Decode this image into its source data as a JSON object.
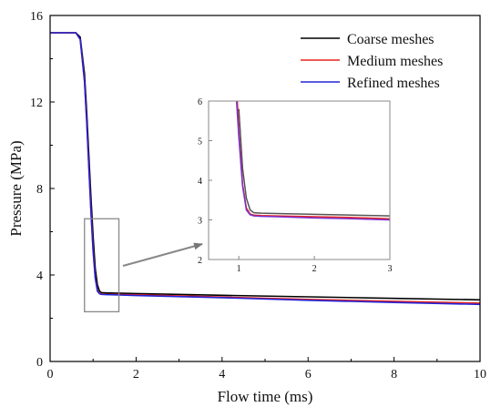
{
  "chart_data": {
    "type": "line",
    "xlabel": "Flow time (ms)",
    "ylabel": "Pressure (MPa)",
    "xlim": [
      0,
      10
    ],
    "ylim": [
      0,
      16
    ],
    "x_ticks": [
      "0",
      "2",
      "4",
      "6",
      "8",
      "10"
    ],
    "y_ticks": [
      "0",
      "4",
      "8",
      "12",
      "16"
    ],
    "legend_position": "top-right",
    "series": [
      {
        "name": "Coarse meshes",
        "color": "#000000",
        "x": [
          0,
          0.6,
          0.7,
          0.8,
          0.85,
          0.9,
          0.95,
          1.0,
          1.05,
          1.1,
          1.15,
          1.2,
          1.3,
          1.5,
          2,
          4,
          6,
          8,
          10
        ],
        "y": [
          15.2,
          15.2,
          15.0,
          13.3,
          11.6,
          9.6,
          7.6,
          5.8,
          4.3,
          3.55,
          3.25,
          3.18,
          3.17,
          3.16,
          3.14,
          3.06,
          2.99,
          2.92,
          2.85
        ]
      },
      {
        "name": "Medium meshes",
        "color": "#e8231c",
        "x": [
          0,
          0.6,
          0.7,
          0.8,
          0.85,
          0.9,
          0.95,
          1.0,
          1.05,
          1.1,
          1.15,
          1.2,
          1.3,
          1.5,
          2,
          4,
          6,
          8,
          10
        ],
        "y": [
          15.2,
          15.2,
          14.9,
          13.0,
          11.2,
          9.1,
          7.0,
          5.2,
          3.9,
          3.3,
          3.15,
          3.12,
          3.11,
          3.1,
          3.08,
          2.98,
          2.87,
          2.78,
          2.7
        ]
      },
      {
        "name": "Refined meshes",
        "color": "#2323d6",
        "x": [
          0,
          0.6,
          0.7,
          0.8,
          0.85,
          0.9,
          0.95,
          1.0,
          1.05,
          1.1,
          1.15,
          1.2,
          1.3,
          1.5,
          2,
          4,
          6,
          8,
          10
        ],
        "y": [
          15.2,
          15.2,
          14.9,
          12.95,
          11.1,
          9.0,
          6.9,
          5.1,
          3.85,
          3.25,
          3.13,
          3.1,
          3.09,
          3.08,
          3.05,
          2.95,
          2.83,
          2.73,
          2.64
        ]
      }
    ],
    "zoom_box": {
      "x": [
        0.8,
        1.6
      ],
      "y": [
        2.3,
        6.6
      ]
    },
    "inset": {
      "xlim": [
        0.6,
        3
      ],
      "ylim": [
        2,
        6
      ],
      "x_ticks": [
        "1",
        "2",
        "3"
      ],
      "y_ticks": [
        "2",
        "3",
        "4",
        "5",
        "6"
      ],
      "series": [
        {
          "name": "Coarse meshes",
          "color": "#555555",
          "x": [
            1.0,
            1.05,
            1.1,
            1.15,
            1.2,
            1.3,
            1.5,
            2,
            2.5,
            3
          ],
          "y": [
            5.8,
            4.3,
            3.55,
            3.25,
            3.18,
            3.17,
            3.16,
            3.14,
            3.12,
            3.1
          ]
        },
        {
          "name": "Medium meshes",
          "color": "#e8231c",
          "x": [
            0.98,
            1.0,
            1.05,
            1.1,
            1.15,
            1.2,
            1.3,
            1.5,
            2,
            2.5,
            3
          ],
          "y": [
            6.0,
            5.2,
            3.9,
            3.3,
            3.15,
            3.12,
            3.11,
            3.1,
            3.08,
            3.06,
            3.03
          ]
        },
        {
          "name": "Refined meshes",
          "color": "#7a2fd0",
          "x": [
            0.97,
            1.0,
            1.05,
            1.1,
            1.15,
            1.2,
            1.3,
            1.5,
            2,
            2.5,
            3
          ],
          "y": [
            6.0,
            5.1,
            3.85,
            3.25,
            3.13,
            3.1,
            3.09,
            3.08,
            3.05,
            3.03,
            3.0
          ]
        }
      ]
    }
  }
}
